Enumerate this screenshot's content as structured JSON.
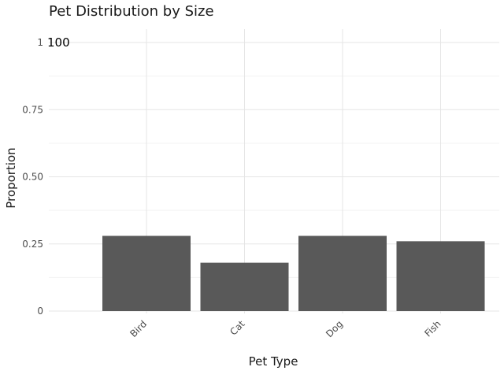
{
  "chart_data": {
    "type": "bar",
    "title": "Pet Distribution by Size",
    "xlabel": "Pet Type",
    "ylabel": "Proportion",
    "categories": [
      "Bird",
      "Cat",
      "Dog",
      "Fish"
    ],
    "values": [
      0.28,
      0.18,
      0.28,
      0.26
    ],
    "ylim": [
      0,
      1
    ],
    "yticks": [
      0,
      0.25,
      0.5,
      0.75,
      1
    ],
    "ytick_labels": [
      "0",
      "0.25",
      "0.50",
      "0.75",
      "1"
    ],
    "annotation": "100",
    "bar_color": "#595959",
    "grid": true,
    "legend": "none"
  }
}
